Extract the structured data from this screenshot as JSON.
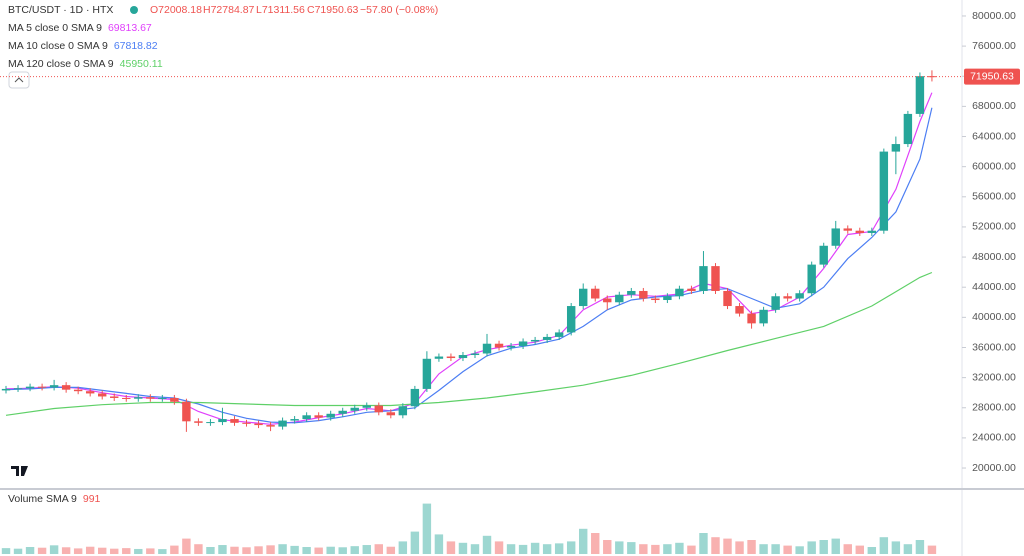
{
  "header": {
    "title": "BTC/USDT · 1D · HTX",
    "ohlc_labels": [
      "O72008.18",
      "H72784.87",
      "L71311.56",
      "C71950.63"
    ],
    "change": "−57.80 (−0.08%)"
  },
  "chart_data": {
    "type": "candlestick",
    "ylim": [
      17350,
      82120
    ],
    "yticks": [
      {
        "value": 20000,
        "label": "20000.00"
      },
      {
        "value": 24000,
        "label": "24000.00"
      },
      {
        "value": 28000,
        "label": "28000.00"
      },
      {
        "value": 32000,
        "label": "32000.00"
      },
      {
        "value": 36000,
        "label": "36000.00"
      },
      {
        "value": 40000,
        "label": "40000.00"
      },
      {
        "value": 44000,
        "label": "44000.00"
      },
      {
        "value": 48000,
        "label": "48000.00"
      },
      {
        "value": 52000,
        "label": "52000.00"
      },
      {
        "value": 56000,
        "label": "56000.00"
      },
      {
        "value": 60000,
        "label": "60000.00"
      },
      {
        "value": 64000,
        "label": "64000.00"
      },
      {
        "value": 68000,
        "label": "68000.00"
      },
      {
        "value": 72000,
        "label": "72000.00"
      },
      {
        "value": 76000,
        "label": "76000.00"
      },
      {
        "value": 80000,
        "label": "80000.00"
      }
    ],
    "grid": false,
    "up_color": "#26a69a",
    "down_color": "#ef5350",
    "candles": {
      "open": [
        30300,
        30500,
        30600,
        30800,
        30700,
        31000,
        30400,
        30200,
        29900,
        29500,
        29300,
        29200,
        29400,
        29200,
        29300,
        28800,
        26200,
        26000,
        26100,
        26500,
        26000,
        25900,
        25700,
        25500,
        26300,
        26500,
        27000,
        26700,
        27200,
        27600,
        28000,
        28300,
        27400,
        27000,
        28200,
        30500,
        34500,
        34800,
        34600,
        35000,
        35200,
        36500,
        36000,
        36200,
        36800,
        37000,
        37400,
        38000,
        41500,
        43800,
        42500,
        42000,
        43000,
        43500,
        42500,
        42300,
        42800,
        43800,
        43500,
        46800,
        43500,
        41500,
        40500,
        39200,
        41000,
        42800,
        42500,
        43200,
        47000,
        49500,
        51800,
        51500,
        51200,
        51500,
        62000,
        63000,
        67000,
        72008.18
      ],
      "high": [
        30900,
        31000,
        31200,
        31200,
        31700,
        31400,
        30800,
        30600,
        30300,
        29900,
        29700,
        29800,
        29800,
        29700,
        29700,
        29200,
        26600,
        26500,
        28000,
        26900,
        26400,
        26300,
        26100,
        26700,
        26900,
        27400,
        27400,
        27600,
        28000,
        28400,
        28700,
        28700,
        27800,
        28600,
        30900,
        35500,
        35200,
        35200,
        35400,
        35600,
        37800,
        36900,
        36600,
        37200,
        37400,
        37800,
        38400,
        41900,
        44500,
        44200,
        42900,
        43400,
        43900,
        43900,
        42900,
        43200,
        44200,
        44200,
        48800,
        47200,
        43900,
        41900,
        40900,
        41400,
        43200,
        43200,
        43600,
        47400,
        49900,
        52800,
        52200,
        51900,
        51900,
        62400,
        64000,
        67400,
        72500,
        72784.87
      ],
      "low": [
        29900,
        30100,
        30200,
        30300,
        30300,
        30000,
        29800,
        29500,
        29100,
        28900,
        28800,
        28800,
        28800,
        28800,
        28400,
        24800,
        25600,
        25600,
        25700,
        25600,
        25500,
        25300,
        24900,
        25100,
        25900,
        26100,
        26300,
        26300,
        26800,
        27200,
        27600,
        27000,
        26600,
        26600,
        27800,
        30100,
        34100,
        34200,
        34200,
        34600,
        34800,
        35600,
        35600,
        35800,
        36400,
        36600,
        37000,
        37600,
        41100,
        42100,
        41000,
        41600,
        42600,
        42100,
        41900,
        41900,
        42400,
        43100,
        43100,
        43100,
        41100,
        40100,
        38500,
        38800,
        40600,
        42100,
        42100,
        42800,
        46600,
        49100,
        51100,
        50800,
        50800,
        51100,
        59000,
        62600,
        66600,
        71311.56
      ],
      "close": [
        30500,
        30600,
        30800,
        30700,
        31000,
        30400,
        30200,
        29900,
        29500,
        29300,
        29200,
        29400,
        29200,
        29300,
        28800,
        26200,
        26000,
        26100,
        26500,
        26000,
        25900,
        25700,
        25500,
        26300,
        26500,
        27000,
        26700,
        27200,
        27600,
        28000,
        28300,
        27400,
        27000,
        28200,
        30500,
        34500,
        34800,
        34600,
        35000,
        35200,
        36500,
        36000,
        36200,
        36800,
        37000,
        37400,
        38000,
        41500,
        43800,
        42500,
        42000,
        43000,
        43500,
        42500,
        42300,
        42800,
        43800,
        43500,
        46800,
        43500,
        41500,
        40500,
        39200,
        41000,
        42800,
        42500,
        43200,
        47000,
        49500,
        51800,
        51500,
        51200,
        51500,
        62000,
        63000,
        67000,
        72008.18,
        71950.63
      ],
      "volume": [
        420,
        380,
        500,
        450,
        620,
        480,
        400,
        520,
        450,
        380,
        420,
        360,
        400,
        350,
        600,
        1100,
        700,
        500,
        640,
        520,
        480,
        550,
        620,
        700,
        580,
        500,
        460,
        520,
        480,
        560,
        640,
        700,
        520,
        900,
        1600,
        3600,
        1400,
        900,
        800,
        700,
        1300,
        900,
        700,
        650,
        800,
        700,
        760,
        900,
        1800,
        1500,
        1000,
        900,
        850,
        700,
        650,
        700,
        800,
        600,
        1500,
        1200,
        1100,
        900,
        1000,
        700,
        700,
        600,
        550,
        900,
        1000,
        1100,
        700,
        600,
        500,
        1200,
        900,
        700,
        1000,
        600
      ]
    },
    "vlim": [
      0,
      4000
    ],
    "series": [
      {
        "name": "MA 5 close 0 SMA 9",
        "color": "#e040fb",
        "x": [
          0,
          2,
          4,
          6,
          8,
          10,
          12,
          14,
          16,
          18,
          20,
          22,
          24,
          26,
          28,
          30,
          32,
          34,
          36,
          38,
          40,
          42,
          44,
          46,
          48,
          50,
          52,
          54,
          56,
          58,
          60,
          62,
          64,
          66,
          68,
          70,
          72,
          74,
          76,
          77
        ],
        "values": [
          30500,
          30600,
          30800,
          30600,
          30000,
          29500,
          29300,
          29100,
          27500,
          26400,
          26100,
          25800,
          26100,
          26700,
          27200,
          27900,
          27600,
          28600,
          32500,
          34800,
          35700,
          36300,
          36700,
          37600,
          41000,
          42700,
          43000,
          42800,
          43100,
          44500,
          43800,
          40500,
          41000,
          42700,
          46500,
          51000,
          51400,
          57000,
          66000,
          69813.67
        ]
      },
      {
        "name": "MA 10 close 0 SMA 9",
        "color": "#4c7ef3",
        "x": [
          0,
          2,
          4,
          6,
          8,
          10,
          12,
          14,
          16,
          18,
          20,
          22,
          24,
          26,
          28,
          30,
          32,
          34,
          36,
          38,
          40,
          42,
          44,
          46,
          48,
          50,
          52,
          54,
          56,
          58,
          60,
          62,
          64,
          66,
          68,
          70,
          72,
          74,
          76,
          77
        ],
        "values": [
          30400,
          30500,
          30700,
          30700,
          30300,
          29900,
          29500,
          29300,
          28500,
          27400,
          26600,
          26100,
          26000,
          26300,
          26800,
          27400,
          27600,
          28000,
          30300,
          32800,
          34900,
          35900,
          36400,
          37100,
          38800,
          41000,
          42300,
          42700,
          42900,
          43600,
          43800,
          42500,
          41200,
          41800,
          44000,
          47800,
          50600,
          54000,
          61000,
          67818.82
        ]
      },
      {
        "name": "MA 120 close 0 SMA 9",
        "color": "#5fd068",
        "x": [
          0,
          4,
          8,
          12,
          16,
          20,
          24,
          28,
          32,
          36,
          40,
          44,
          48,
          52,
          56,
          60,
          64,
          68,
          72,
          76,
          77
        ],
        "values": [
          27000,
          27900,
          28400,
          28700,
          28700,
          28500,
          28300,
          28300,
          28300,
          28700,
          29300,
          30100,
          31000,
          32300,
          33900,
          35600,
          37200,
          38800,
          41500,
          45300,
          45950.11
        ]
      }
    ],
    "volume_sma": {
      "name": "Volume SMA 9",
      "value": 991
    }
  }
}
